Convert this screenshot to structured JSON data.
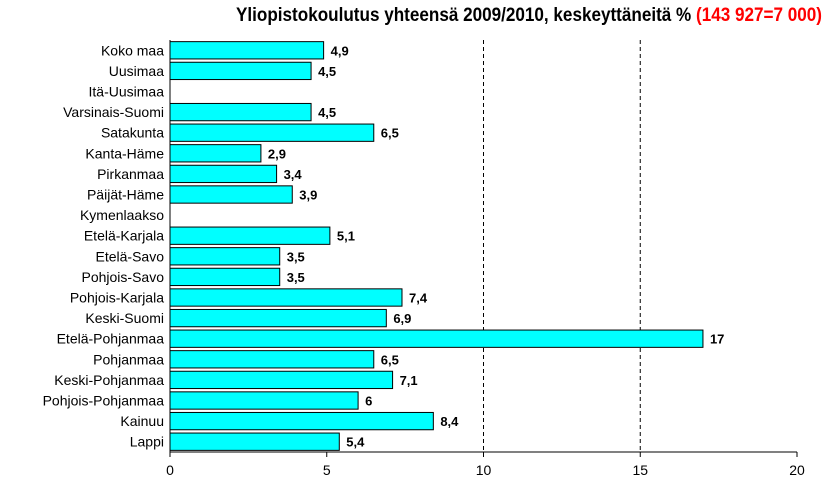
{
  "chart_data": {
    "type": "bar",
    "orientation": "horizontal",
    "title": "Yliopistokoulutus yhteensä 2009/2010, keskeyttäneitä %",
    "title_highlight": "(143 927=7 000)",
    "title_highlight_color": "#ff0000",
    "bar_color": "#00ffff",
    "xlim": [
      0,
      20
    ],
    "xticks": [
      "0",
      "5",
      "10",
      "15",
      "20"
    ],
    "grid": "vertical dashed at 10 and 15",
    "categories": [
      "Koko maa",
      "Uusimaa",
      "Itä-Uusimaa",
      "Varsinais-Suomi",
      "Satakunta",
      "Kanta-Häme",
      "Pirkanmaa",
      "Päijät-Häme",
      "Kymenlaakso",
      "Etelä-Karjala",
      "Etelä-Savo",
      "Pohjois-Savo",
      "Pohjois-Karjala",
      "Keski-Suomi",
      "Etelä-Pohjanmaa",
      "Pohjanmaa",
      "Keski-Pohjanmaa",
      "Pohjois-Pohjanmaa",
      "Kainuu",
      "Lappi"
    ],
    "values": [
      4.9,
      4.5,
      null,
      4.5,
      6.5,
      2.9,
      3.4,
      3.9,
      null,
      5.1,
      3.5,
      3.5,
      7.4,
      6.9,
      17,
      6.5,
      7.1,
      6,
      8.4,
      5.4
    ],
    "value_labels": [
      "4,9",
      "4,5",
      "",
      "4,5",
      "6,5",
      "2,9",
      "3,4",
      "3,9",
      "",
      "5,1",
      "3,5",
      "3,5",
      "7,4",
      "6,9",
      "17",
      "6,5",
      "7,1",
      "6",
      "8,4",
      "5,4"
    ]
  }
}
